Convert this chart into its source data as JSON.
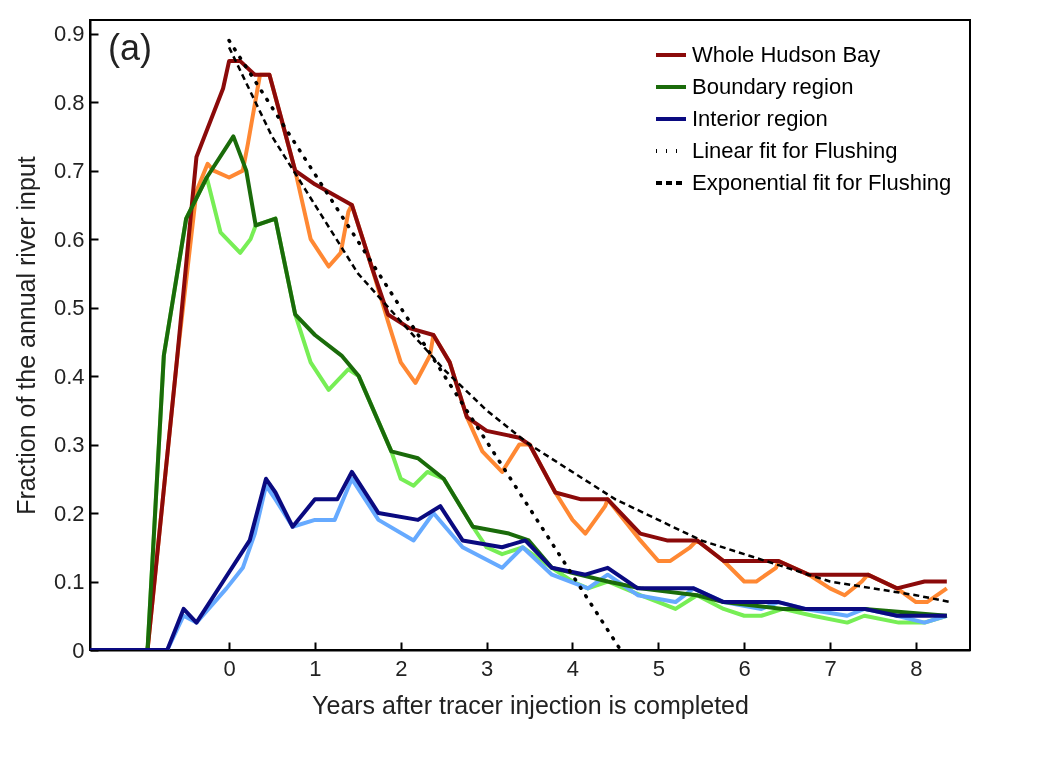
{
  "chart_data": {
    "type": "line",
    "xlabel": "Years after tracer injection is completed",
    "ylabel": "Fraction of the annual river input",
    "annotations": [
      "(a)"
    ],
    "xlim": [
      -1.62,
      8.63
    ],
    "xticks": [
      0,
      1,
      2,
      3,
      4,
      5,
      6,
      7,
      8
    ],
    "ylim": [
      0,
      0.92
    ],
    "yticks": [
      0,
      0.1,
      0.2,
      0.3,
      0.4,
      0.5,
      0.6,
      0.7,
      0.8,
      0.9
    ],
    "legend": "top right",
    "line_style": "solid",
    "series": [
      {
        "color": "#ff8833",
        "x": [
          -1.62,
          -0.95,
          -0.61,
          -0.38,
          -0.25,
          -0.18,
          0.0,
          0.16,
          0.22,
          0.36,
          0.47,
          0.77,
          0.95,
          1.16,
          1.3,
          1.39,
          1.43,
          1.66,
          1.85,
          2.0,
          2.17,
          2.34,
          2.38,
          2.57,
          2.77,
          2.95,
          3.18,
          3.38,
          3.5,
          3.8,
          4.0,
          4.15,
          4.38,
          4.41,
          4.79,
          5.0,
          5.14,
          5.37,
          5.45,
          5.76,
          6.0,
          6.14,
          6.37,
          6.4,
          6.75,
          7.0,
          7.17,
          7.37,
          7.44,
          7.78,
          8.0,
          8.13,
          8.36
        ],
        "values": [
          0,
          0,
          0.42,
          0.67,
          0.71,
          0.7,
          0.69,
          0.7,
          0.74,
          0.84,
          0.84,
          0.7,
          0.6,
          0.56,
          0.58,
          0.64,
          0.65,
          0.56,
          0.48,
          0.42,
          0.39,
          0.43,
          0.46,
          0.42,
          0.34,
          0.29,
          0.26,
          0.3,
          0.3,
          0.23,
          0.19,
          0.17,
          0.21,
          0.22,
          0.16,
          0.13,
          0.13,
          0.15,
          0.16,
          0.13,
          0.1,
          0.1,
          0.12,
          0.13,
          0.11,
          0.09,
          0.08,
          0.1,
          0.11,
          0.09,
          0.07,
          0.07,
          0.09
        ]
      },
      {
        "color": "#77ee55",
        "x": [
          -1.62,
          -0.95,
          -0.76,
          -0.5,
          -0.26,
          -0.1,
          0.13,
          0.25,
          0.31,
          0.54,
          0.77,
          0.95,
          1.16,
          1.39,
          1.51,
          1.89,
          2.0,
          2.15,
          2.31,
          2.5,
          2.84,
          3.0,
          3.18,
          3.42,
          3.76,
          4.0,
          4.18,
          4.41,
          4.79,
          5.0,
          5.2,
          5.45,
          5.76,
          6.0,
          6.2,
          6.45,
          6.8,
          7.2,
          7.4,
          7.8,
          8.1,
          8.36
        ],
        "values": [
          0,
          0,
          0.43,
          0.63,
          0.69,
          0.61,
          0.58,
          0.6,
          0.62,
          0.63,
          0.49,
          0.42,
          0.38,
          0.41,
          0.4,
          0.29,
          0.25,
          0.24,
          0.26,
          0.25,
          0.18,
          0.15,
          0.14,
          0.15,
          0.12,
          0.1,
          0.09,
          0.1,
          0.08,
          0.07,
          0.06,
          0.08,
          0.06,
          0.05,
          0.05,
          0.06,
          0.05,
          0.04,
          0.05,
          0.04,
          0.04,
          0.05
        ]
      },
      {
        "color": "#66aaff",
        "x": [
          -1.62,
          -0.72,
          -0.53,
          -0.38,
          -0.03,
          0.16,
          0.3,
          0.43,
          0.54,
          0.74,
          1.0,
          1.23,
          1.43,
          1.74,
          2.15,
          2.38,
          2.72,
          3.18,
          3.42,
          3.76,
          4.18,
          4.41,
          4.76,
          5.2,
          5.41,
          5.76,
          6.2,
          6.4,
          6.71,
          7.2,
          7.4,
          7.78,
          8.1,
          8.36
        ],
        "values": [
          0,
          0,
          0.05,
          0.04,
          0.09,
          0.12,
          0.17,
          0.24,
          0.22,
          0.18,
          0.19,
          0.19,
          0.25,
          0.19,
          0.16,
          0.2,
          0.15,
          0.12,
          0.15,
          0.11,
          0.09,
          0.11,
          0.08,
          0.07,
          0.09,
          0.07,
          0.06,
          0.07,
          0.06,
          0.05,
          0.06,
          0.05,
          0.04,
          0.05
        ]
      },
      {
        "name": "Whole Hudson Bay",
        "color": "#8b0a0a",
        "x": [
          -1.62,
          -0.95,
          -0.61,
          -0.38,
          -0.07,
          0.0,
          0.13,
          0.3,
          0.47,
          0.6,
          0.77,
          1.0,
          1.43,
          1.66,
          1.85,
          2.1,
          2.38,
          2.57,
          2.77,
          3.0,
          3.38,
          3.5,
          3.8,
          4.1,
          4.41,
          4.79,
          5.1,
          5.45,
          5.76,
          6.1,
          6.4,
          6.75,
          7.1,
          7.44,
          7.78,
          8.1,
          8.36
        ],
        "values": [
          0,
          0,
          0.42,
          0.72,
          0.82,
          0.86,
          0.86,
          0.84,
          0.84,
          0.78,
          0.7,
          0.68,
          0.65,
          0.56,
          0.49,
          0.47,
          0.46,
          0.42,
          0.34,
          0.32,
          0.31,
          0.3,
          0.23,
          0.22,
          0.22,
          0.17,
          0.16,
          0.16,
          0.13,
          0.13,
          0.13,
          0.11,
          0.11,
          0.11,
          0.09,
          0.1,
          0.1
        ]
      },
      {
        "name": "Boundary region",
        "color": "#1a6b0a",
        "x": [
          -1.62,
          -0.95,
          -0.76,
          -0.5,
          -0.26,
          0.05,
          0.2,
          0.31,
          0.54,
          0.77,
          1.0,
          1.31,
          1.51,
          1.89,
          2.2,
          2.5,
          2.84,
          3.26,
          3.49,
          3.76,
          4.41,
          4.79,
          5.45,
          5.76,
          6.45,
          7.4,
          8.36
        ],
        "values": [
          0,
          0,
          0.43,
          0.63,
          0.69,
          0.75,
          0.7,
          0.62,
          0.63,
          0.49,
          0.46,
          0.43,
          0.4,
          0.29,
          0.28,
          0.25,
          0.18,
          0.17,
          0.16,
          0.12,
          0.1,
          0.09,
          0.08,
          0.07,
          0.06,
          0.06,
          0.05
        ]
      },
      {
        "name": "Interior region",
        "color": "#0a0a80",
        "x": [
          -1.62,
          -0.72,
          -0.53,
          -0.38,
          -0.07,
          0.24,
          0.43,
          0.54,
          0.74,
          1.0,
          1.26,
          1.43,
          1.74,
          2.2,
          2.46,
          2.72,
          3.18,
          3.45,
          3.76,
          4.15,
          4.41,
          4.76,
          5.22,
          5.41,
          5.76,
          6.4,
          6.71,
          7.4,
          7.78,
          8.36
        ],
        "values": [
          0,
          0,
          0.06,
          0.04,
          0.1,
          0.16,
          0.25,
          0.23,
          0.18,
          0.22,
          0.22,
          0.26,
          0.2,
          0.19,
          0.21,
          0.16,
          0.15,
          0.16,
          0.12,
          0.11,
          0.12,
          0.09,
          0.09,
          0.09,
          0.07,
          0.07,
          0.06,
          0.06,
          0.05,
          0.05
        ]
      },
      {
        "name": "Linear fit for Flushing",
        "color": "#000000",
        "line_style": "dotted",
        "x": [
          0,
          4.56
        ],
        "values": [
          0.89,
          0
        ]
      },
      {
        "name": "Exponential fit for Flushing",
        "color": "#000000",
        "line_style": "dashed",
        "x": [
          0,
          0.5,
          1,
          1.5,
          2,
          2.5,
          3,
          3.5,
          4,
          4.5,
          5,
          5.5,
          6,
          6.5,
          7,
          7.5,
          8,
          8.4
        ],
        "values": [
          0.88,
          0.75,
          0.65,
          0.55,
          0.48,
          0.41,
          0.35,
          0.3,
          0.26,
          0.22,
          0.19,
          0.16,
          0.14,
          0.12,
          0.1,
          0.09,
          0.08,
          0.07
        ]
      }
    ]
  }
}
